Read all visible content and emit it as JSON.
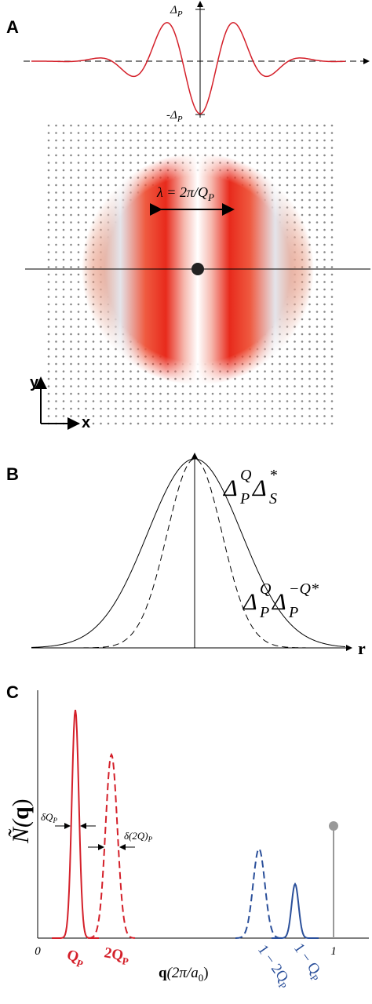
{
  "panels": [
    {
      "label": "A",
      "wave_top": {
        "main": "Δ",
        "sub": "P"
      },
      "wave_bottom": {
        "main": "-Δ",
        "sub": "P"
      },
      "wavelength": {
        "main": "λ = 2π/Q",
        "sub": "P"
      },
      "axis_y": "y",
      "axis_x": "x"
    },
    {
      "label": "B",
      "solid_curve": {
        "main": "Δ",
        "sup": "Q",
        "sub": "P",
        "main2": "Δ",
        "sup2": "*",
        "sub2": "S"
      },
      "dashed_curve": {
        "main": "Δ",
        "sup": "Q",
        "sub": "P",
        "main2": "Δ",
        "sup2": "−Q*",
        "sub2": "P"
      },
      "axis_x": "r"
    },
    {
      "label": "C",
      "y_label": {
        "main": "Ñ(",
        "bold": "q",
        "end": ")"
      },
      "x_label": {
        "bold": "q",
        "main": "(2π/a",
        "sub": "0",
        "end": ")"
      },
      "tick_start": "0",
      "tick_end": "1",
      "peak_1": {
        "main": "Q",
        "sub": "P"
      },
      "peak_2": {
        "main": "2Q",
        "sub": "P"
      },
      "peak_3": {
        "main": "1 − 2Q",
        "sub": "P"
      },
      "peak_4": {
        "main": "1 − Q",
        "sub": "P"
      },
      "width_1": {
        "main": "δQ",
        "sub": "P"
      },
      "width_2": {
        "main": "δ(2Q)",
        "sub": "P"
      }
    }
  ]
}
